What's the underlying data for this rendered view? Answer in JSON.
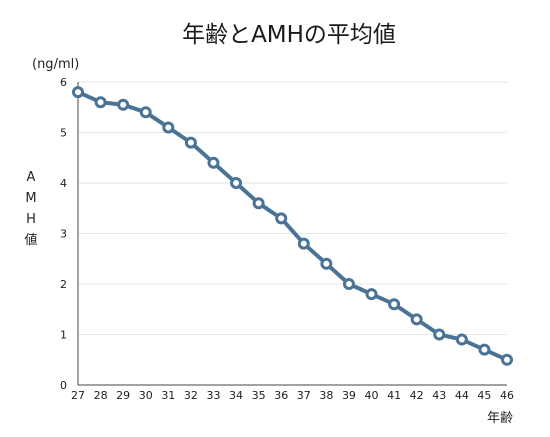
{
  "chart_data": {
    "type": "line",
    "title": "年齢とAMHの平均値",
    "unit_label": "(ng/ml)",
    "ylabel": [
      "A",
      "M",
      "H",
      "値"
    ],
    "xlabel": "年齢",
    "x": [
      27,
      28,
      29,
      30,
      31,
      32,
      33,
      34,
      35,
      36,
      37,
      38,
      39,
      40,
      41,
      42,
      43,
      44,
      45,
      46
    ],
    "series": [
      {
        "values": [
          5.8,
          5.6,
          5.55,
          5.4,
          5.1,
          4.8,
          4.4,
          4.0,
          3.6,
          3.3,
          2.8,
          2.4,
          2.0,
          1.8,
          1.6,
          1.3,
          1.0,
          0.9,
          0.7,
          0.5
        ],
        "color": "#4a7397"
      }
    ],
    "xlim": [
      27,
      46
    ],
    "ylim": [
      0,
      6
    ],
    "yticks": [
      0,
      1,
      2,
      3,
      4,
      5,
      6
    ],
    "grid": true,
    "legend": "none"
  }
}
